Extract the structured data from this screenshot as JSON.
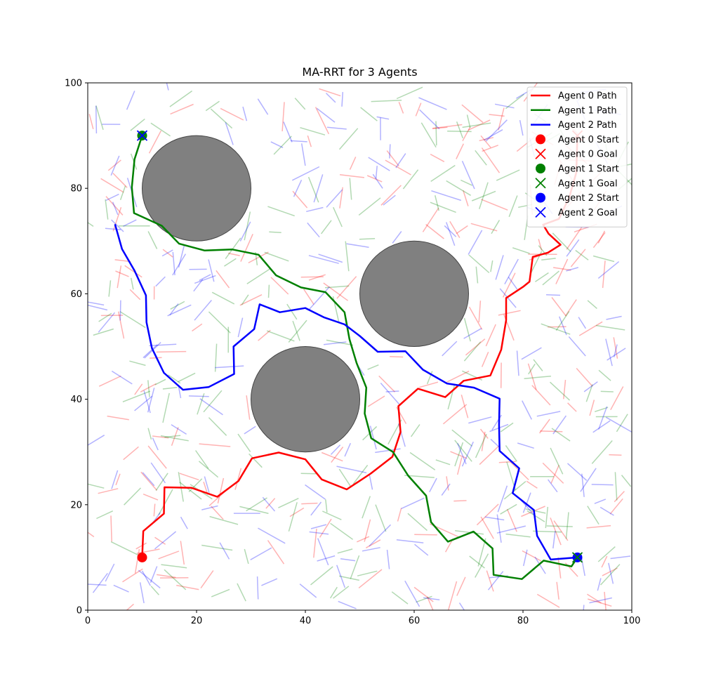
{
  "chart_data": {
    "type": "line",
    "title": "MA-RRT for 3 Agents",
    "xlabel": "",
    "ylabel": "",
    "xlim": [
      0,
      100
    ],
    "ylim": [
      0,
      100
    ],
    "x_ticks": [
      "0",
      "20",
      "40",
      "60",
      "80",
      "100"
    ],
    "y_ticks": [
      "0",
      "20",
      "40",
      "60",
      "80",
      "100"
    ],
    "grid": false,
    "legend_position": "top-right",
    "colors": {
      "agent0": "#ff0000",
      "agent1": "#008000",
      "agent2": "#0000ff",
      "obstacle": "#808080"
    },
    "obstacles": [
      {
        "cx": 20,
        "cy": 80,
        "r": 10
      },
      {
        "cx": 60,
        "cy": 60,
        "r": 10
      },
      {
        "cx": 40,
        "cy": 40,
        "r": 10
      }
    ],
    "series": [
      {
        "name": "Agent 0 Path",
        "color": "#ff0000",
        "start": [
          10,
          10
        ],
        "goal": [
          90,
          90
        ],
        "points": [
          [
            10,
            10
          ],
          [
            10.2,
            15
          ],
          [
            14,
            18.3
          ],
          [
            14.1,
            23.3
          ],
          [
            19.1,
            23.2
          ],
          [
            23.8,
            21.5
          ],
          [
            27.7,
            24.5
          ],
          [
            30.2,
            28.8
          ],
          [
            35.1,
            29.9
          ],
          [
            40.0,
            28.6
          ],
          [
            43.0,
            24.8
          ],
          [
            47.6,
            22.9
          ],
          [
            52.0,
            25.9
          ],
          [
            56.0,
            29.1
          ],
          [
            57.5,
            33.8
          ],
          [
            57.1,
            38.7
          ],
          [
            60.7,
            42.0
          ],
          [
            65.7,
            40.4
          ],
          [
            69.1,
            43.5
          ],
          [
            74.0,
            44.5
          ],
          [
            76.0,
            49.4
          ],
          [
            76.9,
            55.0
          ],
          [
            76.9,
            59.2
          ],
          [
            80.0,
            61.3
          ],
          [
            81.2,
            62.3
          ],
          [
            81.8,
            67.0
          ],
          [
            84.6,
            67.8
          ],
          [
            86.9,
            69.3
          ],
          [
            84.7,
            71.4
          ],
          [
            83.7,
            73.1
          ],
          [
            86.6,
            74.2
          ],
          [
            88.5,
            78.3
          ],
          [
            89.8,
            83.0
          ],
          [
            90,
            90
          ]
        ]
      },
      {
        "name": "Agent 1 Path",
        "color": "#008000",
        "start": [
          10,
          90
        ],
        "goal": [
          90,
          10
        ],
        "points": [
          [
            10,
            90
          ],
          [
            8.6,
            85.5
          ],
          [
            8.1,
            80.2
          ],
          [
            8.5,
            75.3
          ],
          [
            13.6,
            72.9
          ],
          [
            16.8,
            69.5
          ],
          [
            21.5,
            68.2
          ],
          [
            26.6,
            68.4
          ],
          [
            31.4,
            67.4
          ],
          [
            34.6,
            63.5
          ],
          [
            39.2,
            61.2
          ],
          [
            43.7,
            60.3
          ],
          [
            47.2,
            56.5
          ],
          [
            48.1,
            51.4
          ],
          [
            49.4,
            46.9
          ],
          [
            51.2,
            42.2
          ],
          [
            50.9,
            37.3
          ],
          [
            52.1,
            32.6
          ],
          [
            56.1,
            30.0
          ],
          [
            58.9,
            25.5
          ],
          [
            62.2,
            21.7
          ],
          [
            63.1,
            16.7
          ],
          [
            66.2,
            13.0
          ],
          [
            70.9,
            14.9
          ],
          [
            74.4,
            11.7
          ],
          [
            74.6,
            6.7
          ],
          [
            79.8,
            5.9
          ],
          [
            83.8,
            9.4
          ],
          [
            88.9,
            8.3
          ],
          [
            90,
            10
          ]
        ]
      },
      {
        "name": "Agent 2 Path",
        "color": "#0000ff",
        "start": [
          90,
          10
        ],
        "goal": [
          10,
          90
        ],
        "points": [
          [
            90,
            10
          ],
          [
            85.1,
            9.6
          ],
          [
            82.6,
            14.1
          ],
          [
            82.0,
            19.0
          ],
          [
            78.1,
            22.2
          ],
          [
            79.3,
            26.9
          ],
          [
            75.7,
            30.2
          ],
          [
            75.6,
            35.2
          ],
          [
            75.7,
            40.1
          ],
          [
            71.0,
            42.2
          ],
          [
            66.0,
            43.0
          ],
          [
            61.6,
            45.6
          ],
          [
            58.4,
            49.1
          ],
          [
            53.3,
            49.0
          ],
          [
            50.0,
            52.0
          ],
          [
            47.2,
            54.2
          ],
          [
            43.5,
            55.5
          ],
          [
            40.0,
            57.3
          ],
          [
            35.3,
            56.5
          ],
          [
            31.6,
            58.0
          ],
          [
            30.6,
            53.3
          ],
          [
            26.8,
            50.0
          ],
          [
            26.9,
            44.8
          ],
          [
            22.2,
            42.3
          ],
          [
            17.5,
            41.8
          ],
          [
            14.0,
            45.0
          ],
          [
            11.8,
            49.7
          ],
          [
            10.8,
            54.6
          ],
          [
            10.7,
            59.7
          ],
          [
            8.6,
            64.4
          ],
          [
            6.3,
            68.5
          ],
          [
            5.0,
            73.2
          ]
        ]
      }
    ],
    "legend": [
      {
        "label": "Agent 0 Path",
        "kind": "line",
        "color": "#ff0000"
      },
      {
        "label": "Agent 1 Path",
        "kind": "line",
        "color": "#008000"
      },
      {
        "label": "Agent 2 Path",
        "kind": "line",
        "color": "#0000ff"
      },
      {
        "label": "Agent 0 Start",
        "kind": "dot",
        "color": "#ff0000"
      },
      {
        "label": "Agent 0 Goal",
        "kind": "cross",
        "color": "#ff0000"
      },
      {
        "label": "Agent 1 Start",
        "kind": "dot",
        "color": "#008000"
      },
      {
        "label": "Agent 1 Goal",
        "kind": "cross",
        "color": "#008000"
      },
      {
        "label": "Agent 2 Start",
        "kind": "dot",
        "color": "#0000ff"
      },
      {
        "label": "Agent 2 Goal",
        "kind": "cross",
        "color": "#0000ff"
      }
    ]
  }
}
